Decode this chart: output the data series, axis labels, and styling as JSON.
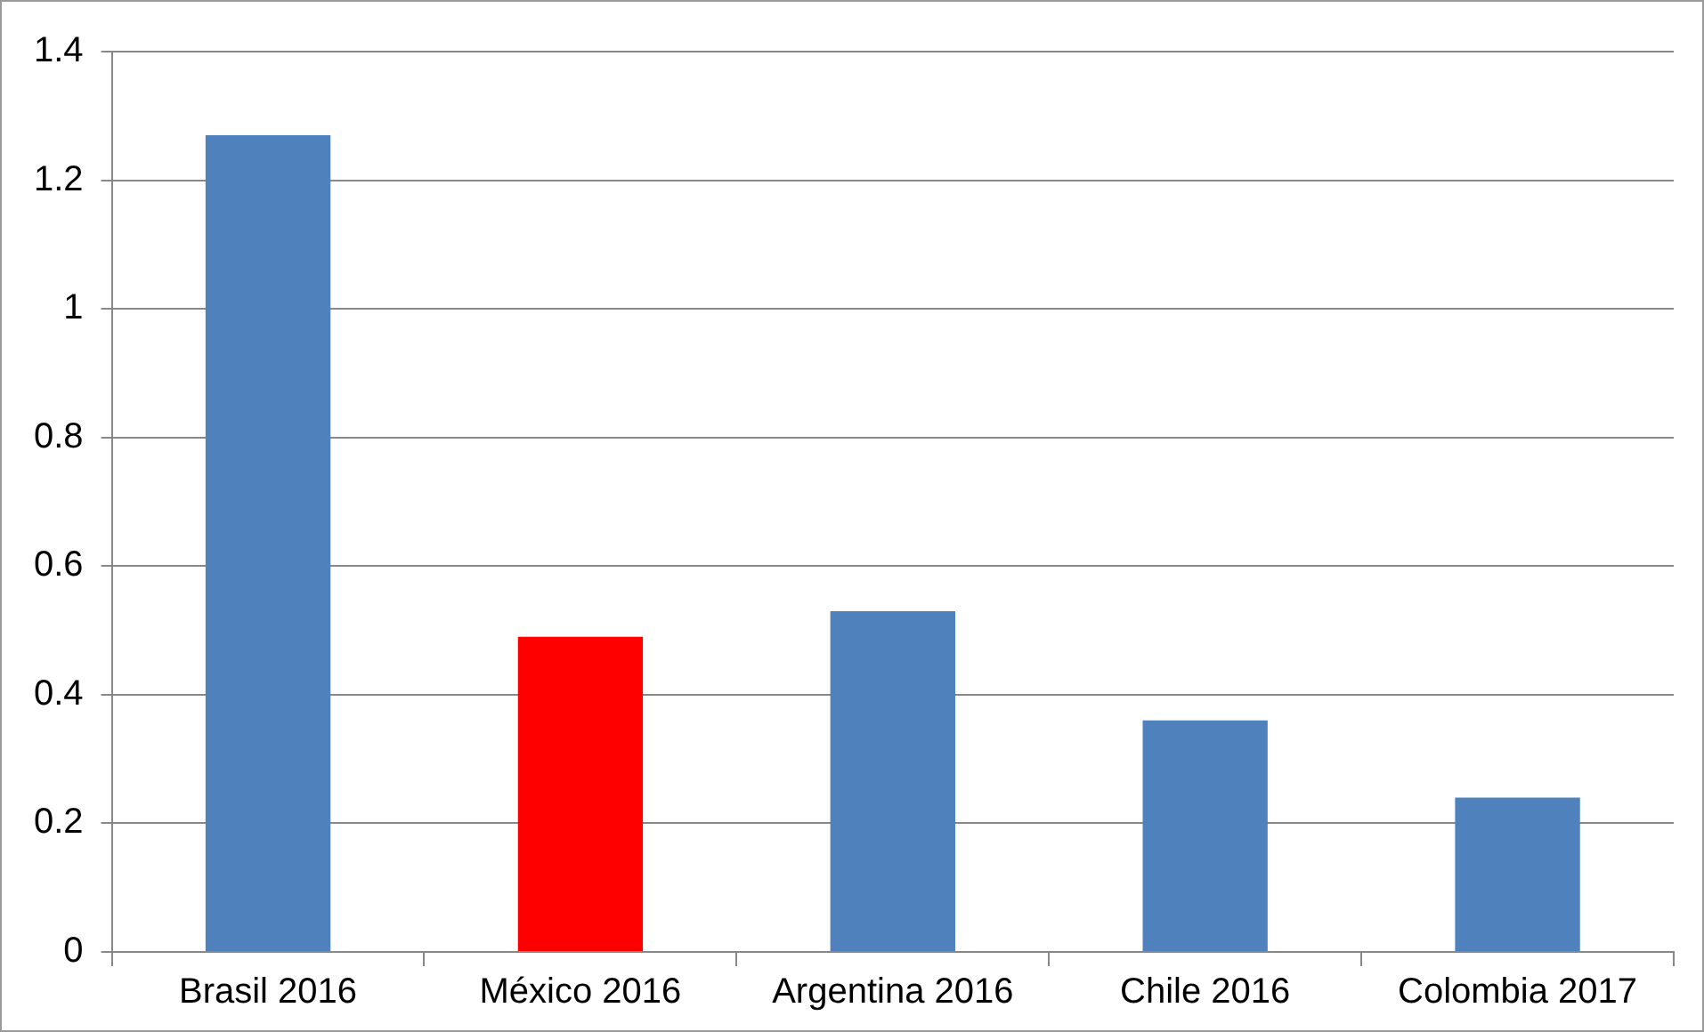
{
  "chart_data": {
    "type": "bar",
    "categories": [
      "Brasil 2016",
      "México 2016",
      "Argentina 2016",
      "Chile 2016",
      "Colombia 2017"
    ],
    "values": [
      1.27,
      0.49,
      0.53,
      0.36,
      0.24
    ],
    "colors": [
      "#4f81bd",
      "#ff0000",
      "#4f81bd",
      "#4f81bd",
      "#4f81bd"
    ],
    "ylim": [
      0,
      1.4
    ],
    "yticks": [
      0,
      0.2,
      0.4,
      0.6,
      0.8,
      1,
      1.2,
      1.4
    ],
    "grid": "y",
    "legend": false
  }
}
